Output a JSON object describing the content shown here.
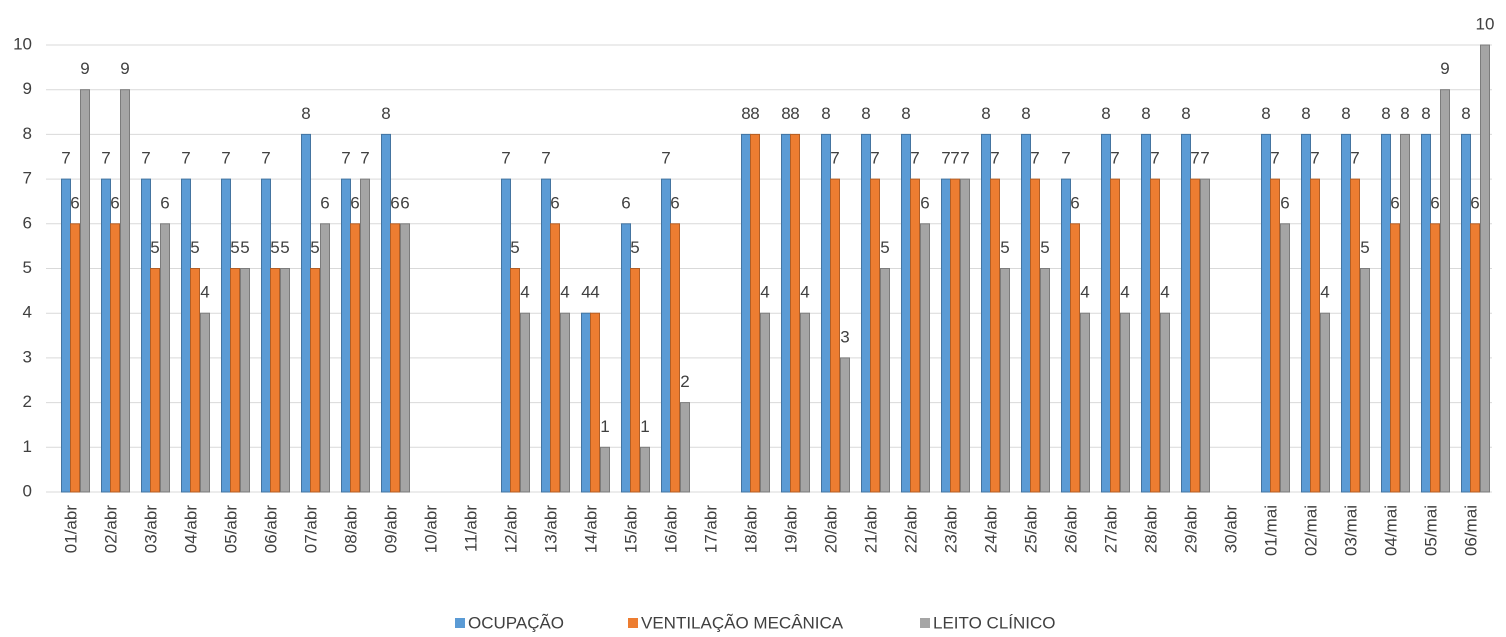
{
  "chart_data": {
    "type": "bar",
    "categories": [
      "01/abr",
      "02/abr",
      "03/abr",
      "04/abr",
      "05/abr",
      "06/abr",
      "07/abr",
      "08/abr",
      "09/abr",
      "10/abr",
      "11/abr",
      "12/abr",
      "13/abr",
      "14/abr",
      "15/abr",
      "16/abr",
      "17/abr",
      "18/abr",
      "19/abr",
      "20/abr",
      "21/abr",
      "22/abr",
      "23/abr",
      "24/abr",
      "25/abr",
      "26/abr",
      "27/abr",
      "28/abr",
      "29/abr",
      "30/abr",
      "01/mai",
      "02/mai",
      "03/mai",
      "04/mai",
      "05/mai",
      "06/mai"
    ],
    "series": [
      {
        "name": "OCUPAÇÃO",
        "color": "#5b9bd5",
        "values": [
          7,
          7,
          7,
          7,
          7,
          7,
          8,
          7,
          8,
          null,
          null,
          7,
          7,
          4,
          6,
          7,
          null,
          8,
          8,
          8,
          8,
          8,
          7,
          8,
          8,
          7,
          8,
          8,
          8,
          null,
          8,
          8,
          8,
          8,
          8,
          8
        ]
      },
      {
        "name": "VENTILAÇÃO MECÂNICA",
        "color": "#ed7d31",
        "values": [
          6,
          6,
          5,
          5,
          5,
          5,
          5,
          6,
          6,
          null,
          null,
          5,
          6,
          4,
          5,
          6,
          null,
          8,
          8,
          7,
          7,
          7,
          7,
          7,
          7,
          6,
          7,
          7,
          7,
          null,
          7,
          7,
          7,
          6,
          6,
          6
        ]
      },
      {
        "name": "LEITO CLÍNICO",
        "color": "#a5a5a5",
        "values": [
          9,
          9,
          6,
          4,
          5,
          5,
          6,
          7,
          6,
          null,
          null,
          4,
          4,
          1,
          1,
          2,
          null,
          4,
          4,
          3,
          5,
          6,
          7,
          5,
          5,
          4,
          4,
          4,
          7,
          null,
          6,
          4,
          5,
          8,
          9,
          10
        ]
      }
    ],
    "ylim": [
      0,
      10
    ],
    "yticks": [
      0,
      1,
      2,
      3,
      4,
      5,
      6,
      7,
      8,
      9,
      10
    ],
    "grid": true,
    "legend": "bottom"
  }
}
